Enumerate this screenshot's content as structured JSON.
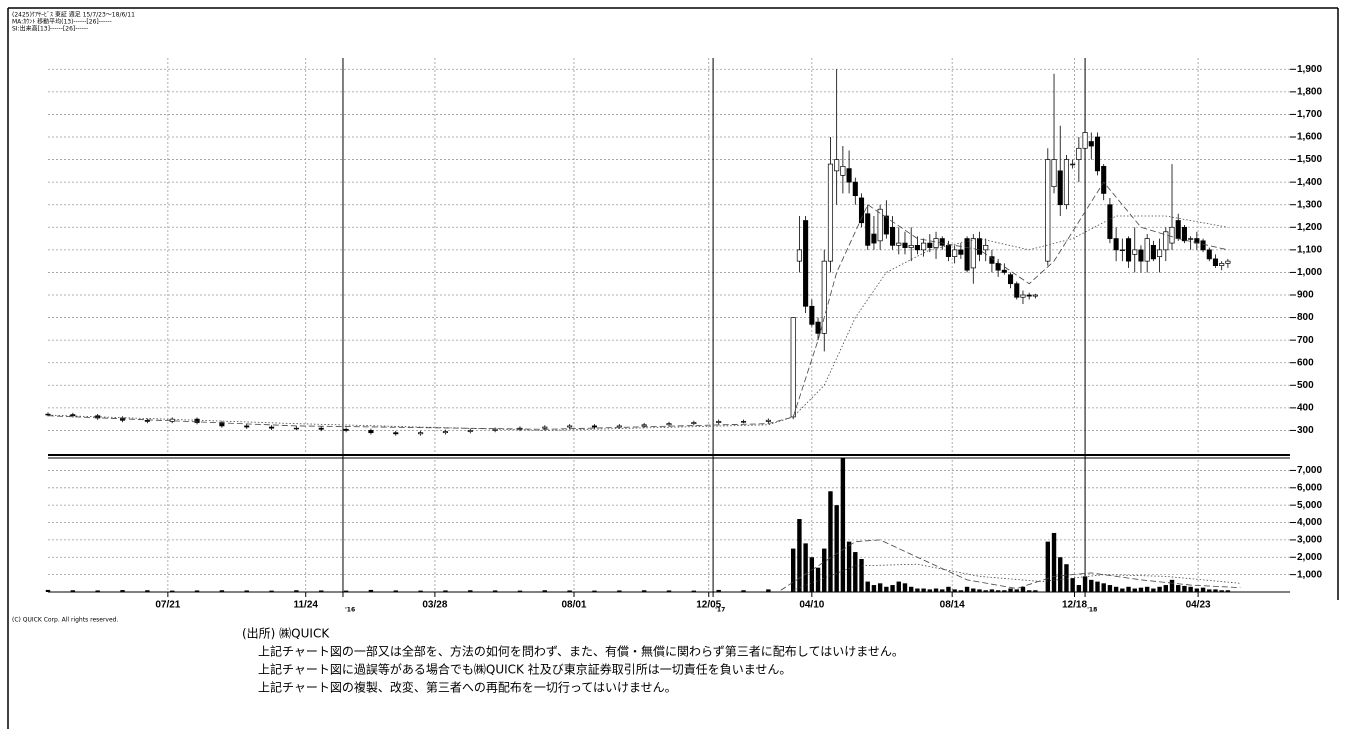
{
  "header": [
    "(2425)ｹｱｻｰﾋﾞｽ 東証 週足 15/7/23～18/6/11",
    "MA:ｶｳﾝﾄ 移動平均(13)------[26]------",
    "SI:出来高[13]------[26]------"
  ],
  "chart_data": [
    {
      "type": "candlestick",
      "x": [
        0,
        4,
        8,
        12,
        16,
        20,
        24,
        28,
        32,
        36,
        40,
        44,
        48,
        52,
        56,
        60,
        64,
        68,
        72,
        76,
        80,
        84,
        88,
        92,
        96,
        100,
        104,
        108,
        112,
        116,
        120,
        121,
        122,
        123,
        124,
        125,
        126,
        127,
        128,
        129,
        130,
        131,
        132,
        133,
        134,
        135,
        136,
        137,
        138,
        139,
        140,
        141,
        142,
        143,
        144,
        145,
        146,
        147,
        148,
        149,
        150,
        151,
        152,
        153,
        154,
        155,
        156,
        157,
        158,
        159,
        161,
        162,
        163,
        164,
        165,
        166,
        167,
        168,
        169,
        170,
        171,
        172,
        173,
        174,
        175,
        176,
        177,
        178,
        179,
        180,
        181,
        182,
        183,
        184,
        185,
        186,
        187,
        188,
        189,
        190
      ],
      "open": [
        372,
        370,
        365,
        355,
        345,
        340,
        350,
        335,
        320,
        315,
        310,
        310,
        305,
        300,
        290,
        285,
        290,
        295,
        300,
        305,
        310,
        315,
        320,
        315,
        320,
        325,
        330,
        335,
        340,
        340,
        360,
        1050,
        1230,
        850,
        780,
        730,
        1050,
        1450,
        1430,
        1460,
        1400,
        1330,
        1260,
        1170,
        1140,
        1250,
        1200,
        1120,
        1130,
        1110,
        1120,
        1100,
        1130,
        1110,
        1150,
        1120,
        1070,
        1100,
        1150,
        1020,
        1150,
        1100,
        1070,
        1040,
        1010,
        990,
        950,
        890,
        900,
        895,
        1050,
        1380,
        1450,
        1300,
        1480,
        1500,
        1550,
        1580,
        1600,
        1470,
        1300,
        1150,
        1100,
        1150,
        1080,
        1100,
        1050,
        1120,
        1070,
        1100,
        1130,
        1230,
        1200,
        1150,
        1150,
        1140,
        1100,
        1060,
        1030,
        1040
      ],
      "high": [
        380,
        378,
        373,
        363,
        353,
        358,
        358,
        343,
        328,
        323,
        318,
        318,
        313,
        308,
        298,
        298,
        303,
        308,
        313,
        318,
        323,
        328,
        328,
        328,
        333,
        338,
        343,
        348,
        348,
        353,
        800,
        1250,
        1250,
        880,
        800,
        1100,
        1600,
        1900,
        1560,
        1540,
        1420,
        1350,
        1300,
        1250,
        1300,
        1320,
        1250,
        1200,
        1180,
        1200,
        1160,
        1150,
        1170,
        1180,
        1160,
        1140,
        1120,
        1130,
        1160,
        1170,
        1180,
        1150,
        1100,
        1060,
        1040,
        1000,
        960,
        920,
        910,
        905,
        1550,
        1880,
        1650,
        1520,
        1500,
        1600,
        1680,
        1620,
        1620,
        1480,
        1330,
        1200,
        1150,
        1160,
        1200,
        1120,
        1170,
        1140,
        1150,
        1200,
        1480,
        1260,
        1210,
        1160,
        1180,
        1150,
        1110,
        1080,
        1050,
        1060
      ],
      "low": [
        362,
        357,
        347,
        337,
        332,
        332,
        327,
        312,
        307,
        302,
        302,
        297,
        292,
        282,
        277,
        277,
        282,
        287,
        292,
        297,
        302,
        307,
        307,
        307,
        312,
        317,
        322,
        327,
        332,
        332,
        350,
        1000,
        820,
        760,
        700,
        650,
        1000,
        1300,
        1350,
        1350,
        1300,
        1200,
        1100,
        1100,
        1100,
        1150,
        1100,
        1080,
        1080,
        1050,
        1080,
        1070,
        1090,
        1060,
        1100,
        1050,
        1040,
        1060,
        1000,
        950,
        1050,
        1050,
        1000,
        980,
        990,
        930,
        880,
        860,
        880,
        885,
        1030,
        1350,
        1250,
        1280,
        1460,
        1400,
        1500,
        1500,
        1430,
        1320,
        1130,
        1050,
        1050,
        1020,
        1000,
        1000,
        1000,
        1050,
        1000,
        1050,
        1100,
        1140,
        1130,
        1100,
        1100,
        1090,
        1050,
        1020,
        1010,
        1020
      ],
      "close": [
        370,
        365,
        355,
        345,
        340,
        350,
        335,
        320,
        315,
        310,
        310,
        305,
        300,
        290,
        285,
        290,
        295,
        300,
        305,
        310,
        315,
        320,
        315,
        320,
        325,
        330,
        335,
        340,
        340,
        345,
        800,
        1100,
        850,
        770,
        730,
        1050,
        1480,
        1500,
        1470,
        1400,
        1340,
        1220,
        1120,
        1130,
        1280,
        1170,
        1120,
        1130,
        1110,
        1120,
        1100,
        1130,
        1110,
        1150,
        1120,
        1070,
        1100,
        1080,
        1010,
        1150,
        1080,
        1120,
        1040,
        1010,
        1000,
        950,
        890,
        900,
        895,
        900,
        1500,
        1500,
        1300,
        1500,
        1480,
        1550,
        1620,
        1560,
        1450,
        1350,
        1150,
        1100,
        1100,
        1050,
        1100,
        1050,
        1150,
        1060,
        1100,
        1180,
        1200,
        1150,
        1140,
        1150,
        1130,
        1100,
        1060,
        1030,
        1040,
        1050
      ],
      "moving_averages": [
        {
          "line_style": "dashed",
          "x": [
            0,
            40,
            80,
            116,
            120,
            124,
            127,
            132,
            140,
            150,
            158,
            162,
            170,
            176,
            182,
            190
          ],
          "values": [
            365,
            320,
            305,
            330,
            360,
            700,
            1000,
            1300,
            1150,
            1100,
            950,
            1050,
            1400,
            1200,
            1150,
            1100
          ]
        },
        {
          "line_style": "dotted",
          "x": [
            0,
            40,
            80,
            116,
            120,
            125,
            130,
            135,
            142,
            150,
            158,
            165,
            172,
            180,
            190
          ],
          "values": [
            368,
            330,
            300,
            325,
            360,
            500,
            800,
            1000,
            1100,
            1150,
            1100,
            1150,
            1250,
            1250,
            1200
          ]
        }
      ],
      "xlim": [
        0,
        200
      ],
      "ylim": [
        200,
        1950
      ],
      "yticks": [
        300,
        400,
        500,
        600,
        700,
        800,
        900,
        {
          "value": 1000,
          "label": "1,000"
        },
        {
          "value": 1100,
          "label": "1,100"
        },
        {
          "value": 1200,
          "label": "1,200"
        },
        {
          "value": 1300,
          "label": "1,300"
        },
        {
          "value": 1400,
          "label": "1,400"
        },
        {
          "value": 1500,
          "label": "1,500"
        },
        {
          "value": 1600,
          "label": "1,600"
        },
        {
          "value": 1700,
          "label": "1,700"
        },
        {
          "value": 1800,
          "label": "1,800"
        },
        {
          "value": 1900,
          "label": "1,900"
        }
      ],
      "grid": true,
      "up_color": "#ffffff",
      "down_color": "#000000"
    },
    {
      "type": "bar",
      "values": [
        120,
        100,
        90,
        110,
        100,
        80,
        90,
        100,
        90,
        80,
        100,
        90,
        80,
        120,
        90,
        80,
        90,
        100,
        90,
        80,
        100,
        90,
        80,
        90,
        100,
        90,
        80,
        120,
        100,
        150,
        2500,
        4200,
        2800,
        2000,
        1400,
        2500,
        5800,
        5000,
        7700,
        2900,
        2300,
        1900,
        600,
        400,
        500,
        300,
        400,
        600,
        500,
        300,
        200,
        200,
        150,
        200,
        150,
        300,
        150,
        100,
        300,
        200,
        150,
        100,
        150,
        100,
        100,
        200,
        150,
        300,
        100,
        100,
        2900,
        3400,
        2000,
        1600,
        800,
        400,
        900,
        700,
        600,
        500,
        400,
        300,
        200,
        300,
        200,
        250,
        300,
        200,
        300,
        400,
        700,
        400,
        350,
        300,
        200,
        250,
        150,
        150,
        100,
        100
      ],
      "moving_averages": [
        {
          "line_style": "dashed",
          "x": [
            118,
            124,
            130,
            134,
            140,
            148,
            156,
            162,
            168,
            176,
            184,
            192
          ],
          "values": [
            100,
            1500,
            2900,
            3000,
            2000,
            700,
            200,
            900,
            1100,
            700,
            400,
            250
          ]
        },
        {
          "line_style": "dotted",
          "x": [
            120,
            130,
            140,
            150,
            160,
            170,
            180,
            192
          ],
          "values": [
            100,
            1500,
            1600,
            900,
            600,
            1000,
            900,
            500
          ]
        }
      ],
      "ylim": [
        0,
        7600
      ],
      "yticks": [
        {
          "value": 1000,
          "label": "1,000"
        },
        {
          "value": 2000,
          "label": "2,000"
        },
        {
          "value": 3000,
          "label": "3,000"
        },
        {
          "value": 4000,
          "label": "4,000"
        },
        {
          "value": 5000,
          "label": "5,000"
        },
        {
          "value": 6000,
          "label": "6,000"
        },
        {
          "value": 7000,
          "label": "7,000"
        }
      ],
      "xticks": [
        {
          "value": 19.3,
          "label": "07/21"
        },
        {
          "value": 41.5,
          "label": "11/24"
        },
        {
          "value": 62.3,
          "label": "03/28"
        },
        {
          "value": 84.7,
          "label": "08/01"
        },
        {
          "value": 106.4,
          "label": "12/05"
        },
        {
          "value": 123,
          "label": "04/10"
        },
        {
          "value": 145.6,
          "label": "08/14"
        },
        {
          "value": 165.3,
          "label": "12/18"
        },
        {
          "value": 185.2,
          "label": "04/23"
        }
      ],
      "year_marks": [
        {
          "value": 47.5,
          "label": "'16"
        },
        {
          "value": 107.1,
          "label": "'17"
        },
        {
          "value": 167,
          "label": "'18"
        }
      ],
      "grid": true,
      "color": "#000000"
    }
  ],
  "footer": {
    "copyright": "(C) QUICK Corp. All rights reserved.",
    "source": "(出所) ㈱QUICK",
    "notes": [
      "上記チャート図の一部又は全部を、方法の如何を問わず、また、有償・無償に関わらず第三者に配布してはいけません。",
      "上記チャート図に過誤等がある場合でも㈱QUICK 社及び東京証券取引所は一切責任を負いません。",
      "上記チャート図の複製、改変、第三者への再配布を一切行ってはいけません。"
    ]
  }
}
